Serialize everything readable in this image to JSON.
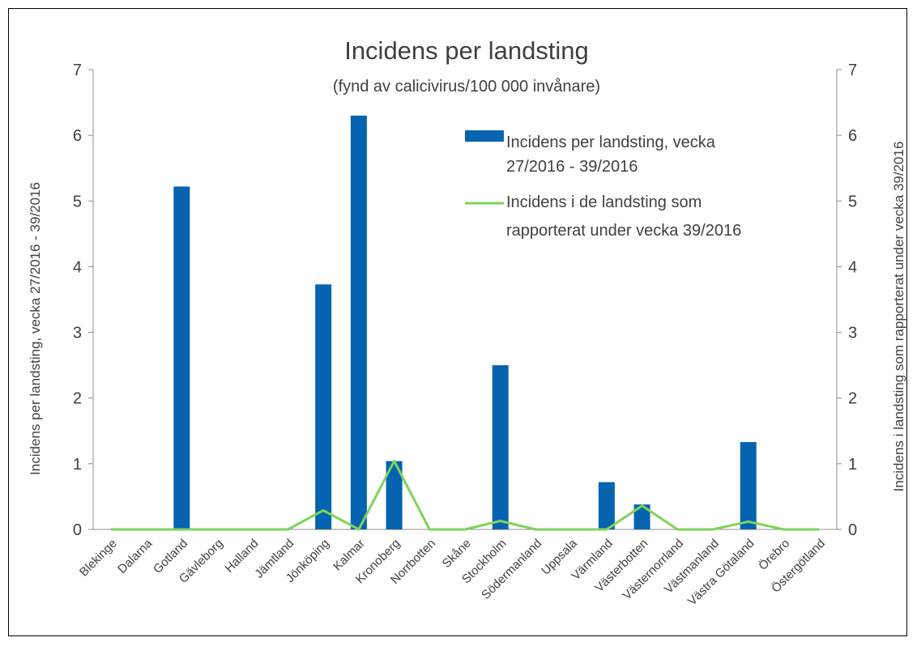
{
  "chart_data": {
    "type": "bar",
    "title": "Incidens per landsting",
    "subtitle": "(fynd av calicivirus/100 000 invånare)",
    "categories": [
      "Blekinge",
      "Dalarna",
      "Gotland",
      "Gävleborg",
      "Halland",
      "Jämtland",
      "Jönköping",
      "Kalmar",
      "Kronoberg",
      "Norrbotten",
      "Skåne",
      "Stockholm",
      "Södermanland",
      "Uppsala",
      "Värmland",
      "Västerbotten",
      "Västernorrland",
      "Västmanland",
      "Västra Götaland",
      "Örebro",
      "Östergötland"
    ],
    "series": [
      {
        "name": "Incidens per landsting, vecka 27/2016 - 39/2016",
        "type": "bar",
        "axis": "left",
        "color": "#0563b0",
        "values": [
          0,
          0,
          5.22,
          0,
          0,
          0,
          3.73,
          6.3,
          1.04,
          0,
          0,
          2.5,
          0,
          0,
          0.72,
          0.38,
          0,
          0,
          1.33,
          0,
          0
        ]
      },
      {
        "name": "Incidens i de landsting som rapporterat under vecka 39/2016",
        "type": "line",
        "axis": "right",
        "color": "#7ed35a",
        "values": [
          0,
          0,
          0,
          0,
          0,
          0,
          0.29,
          0,
          1.04,
          0,
          0,
          0.13,
          0,
          0,
          0,
          0.36,
          0,
          0,
          0.12,
          0,
          0
        ]
      }
    ],
    "ylabel": "Incidens per landsting, vecka 27/2016 - 39/2016",
    "ylabel_right": "Incidens i landsting som rapporterat under vecka 39/2016",
    "ylim": [
      0,
      7
    ],
    "ylim_right": [
      0,
      7
    ],
    "yticks": [
      "0",
      "1",
      "2",
      "3",
      "4",
      "5",
      "6",
      "7"
    ],
    "legend_lines": [
      [
        "Incidens per landsting, vecka",
        "27/2016 - 39/2016"
      ],
      [
        "Incidens i de landsting som",
        "rapporterat under vecka 39/2016"
      ]
    ],
    "legend_position": "top-right",
    "grid": false
  }
}
